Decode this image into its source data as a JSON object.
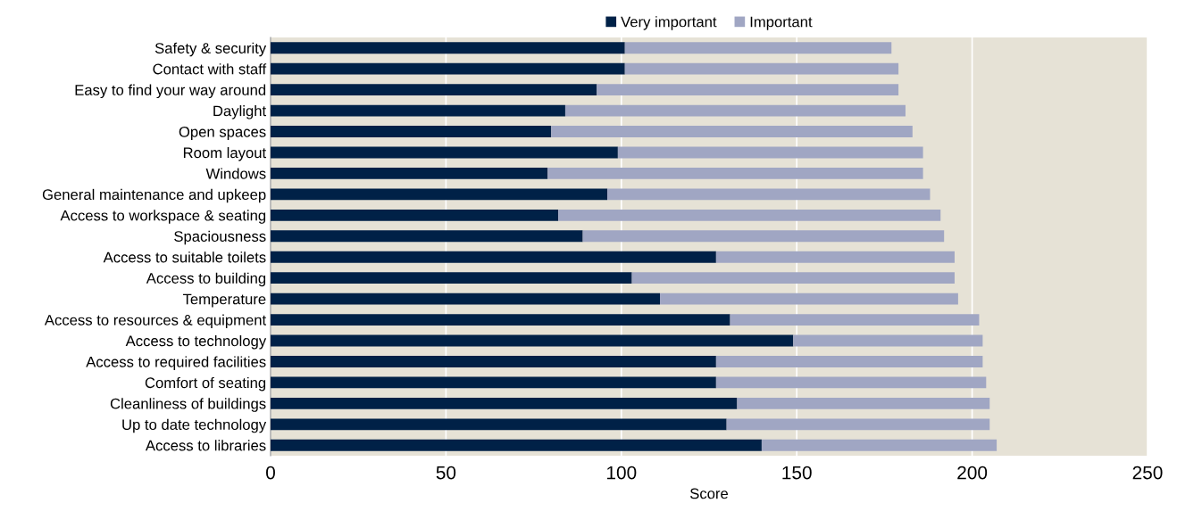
{
  "chart_data": {
    "type": "bar",
    "orientation": "horizontal",
    "stacked": true,
    "xlabel": "Score",
    "categories": [
      "Safety & security",
      "Contact with staff",
      "Easy to find your way around",
      "Daylight",
      "Open spaces",
      "Room layout",
      "Windows",
      "General maintenance and upkeep",
      "Access to workspace & seating",
      "Spaciousness",
      "Access to suitable toilets",
      "Access to building",
      "Temperature",
      "Access to resources & equipment",
      "Access to technology",
      "Access to required facilities",
      "Comfort of seating",
      "Cleanliness of buildings",
      "Up to date technology",
      "Access to libraries"
    ],
    "series": [
      {
        "name": "Very important",
        "color": "#002147",
        "values": [
          101,
          101,
          93,
          84,
          80,
          99,
          79,
          96,
          82,
          89,
          127,
          103,
          111,
          131,
          149,
          127,
          127,
          133,
          130,
          140
        ]
      },
      {
        "name": "Important",
        "color": "#a0a6c3",
        "values": [
          76,
          78,
          86,
          97,
          103,
          87,
          107,
          92,
          109,
          103,
          68,
          92,
          85,
          71,
          54,
          76,
          77,
          72,
          75,
          67
        ]
      }
    ],
    "xlim": [
      0,
      250
    ],
    "xticks": [
      0,
      50,
      100,
      150,
      200,
      250
    ],
    "grid": "x",
    "legend": "top"
  }
}
